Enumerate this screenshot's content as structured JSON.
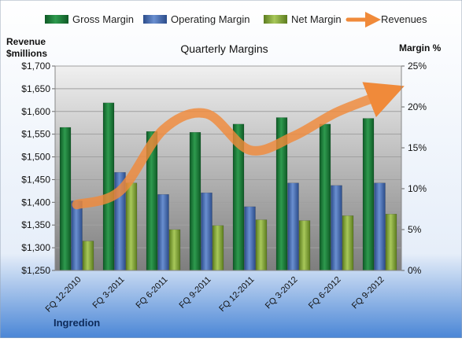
{
  "chart_data": {
    "type": "bar",
    "title": "Quarterly Margins",
    "footer_label": "Ingredion",
    "left_axis_label_line1": "Revenue",
    "left_axis_label_line2": "$millions",
    "right_axis_label": "Margin %",
    "categories": [
      "FQ 12-2010",
      "FQ 3-2011",
      "FQ 6-2011",
      "FQ 9-2011",
      "FQ 12-2011",
      "FQ 3-2012",
      "FQ 6-2012",
      "FQ 9-2012"
    ],
    "series": [
      {
        "name": "Gross Margin",
        "axis": "right",
        "kind": "bar",
        "color": "#1f7a3a",
        "values": [
          17.5,
          20.5,
          17.0,
          16.9,
          17.9,
          18.7,
          17.9,
          18.6
        ]
      },
      {
        "name": "Operating Margin",
        "axis": "right",
        "kind": "bar",
        "color": "#4a6fb5",
        "values": [
          8.5,
          12.0,
          9.3,
          9.5,
          7.8,
          10.7,
          10.4,
          10.7
        ]
      },
      {
        "name": "Net Margin",
        "axis": "right",
        "kind": "bar",
        "color": "#8cb23c",
        "values": [
          3.6,
          10.7,
          5.0,
          5.5,
          6.2,
          6.1,
          6.7,
          6.9
        ]
      },
      {
        "name": "Revenues",
        "axis": "left",
        "kind": "line",
        "color": "#f08a3a",
        "values": [
          1395,
          1425,
          1560,
          1595,
          1515,
          1545,
          1598,
          1635
        ]
      }
    ],
    "left_axis": {
      "min": 1250,
      "max": 1700,
      "ticks": [
        "$1,250",
        "$1,300",
        "$1,350",
        "$1,400",
        "$1,450",
        "$1,500",
        "$1,550",
        "$1,600",
        "$1,650",
        "$1,700"
      ]
    },
    "right_axis": {
      "min": 0,
      "max": 25,
      "ticks": [
        "0%",
        "5%",
        "10%",
        "15%",
        "20%",
        "25%"
      ]
    },
    "grid": true,
    "legend_position": "top"
  }
}
